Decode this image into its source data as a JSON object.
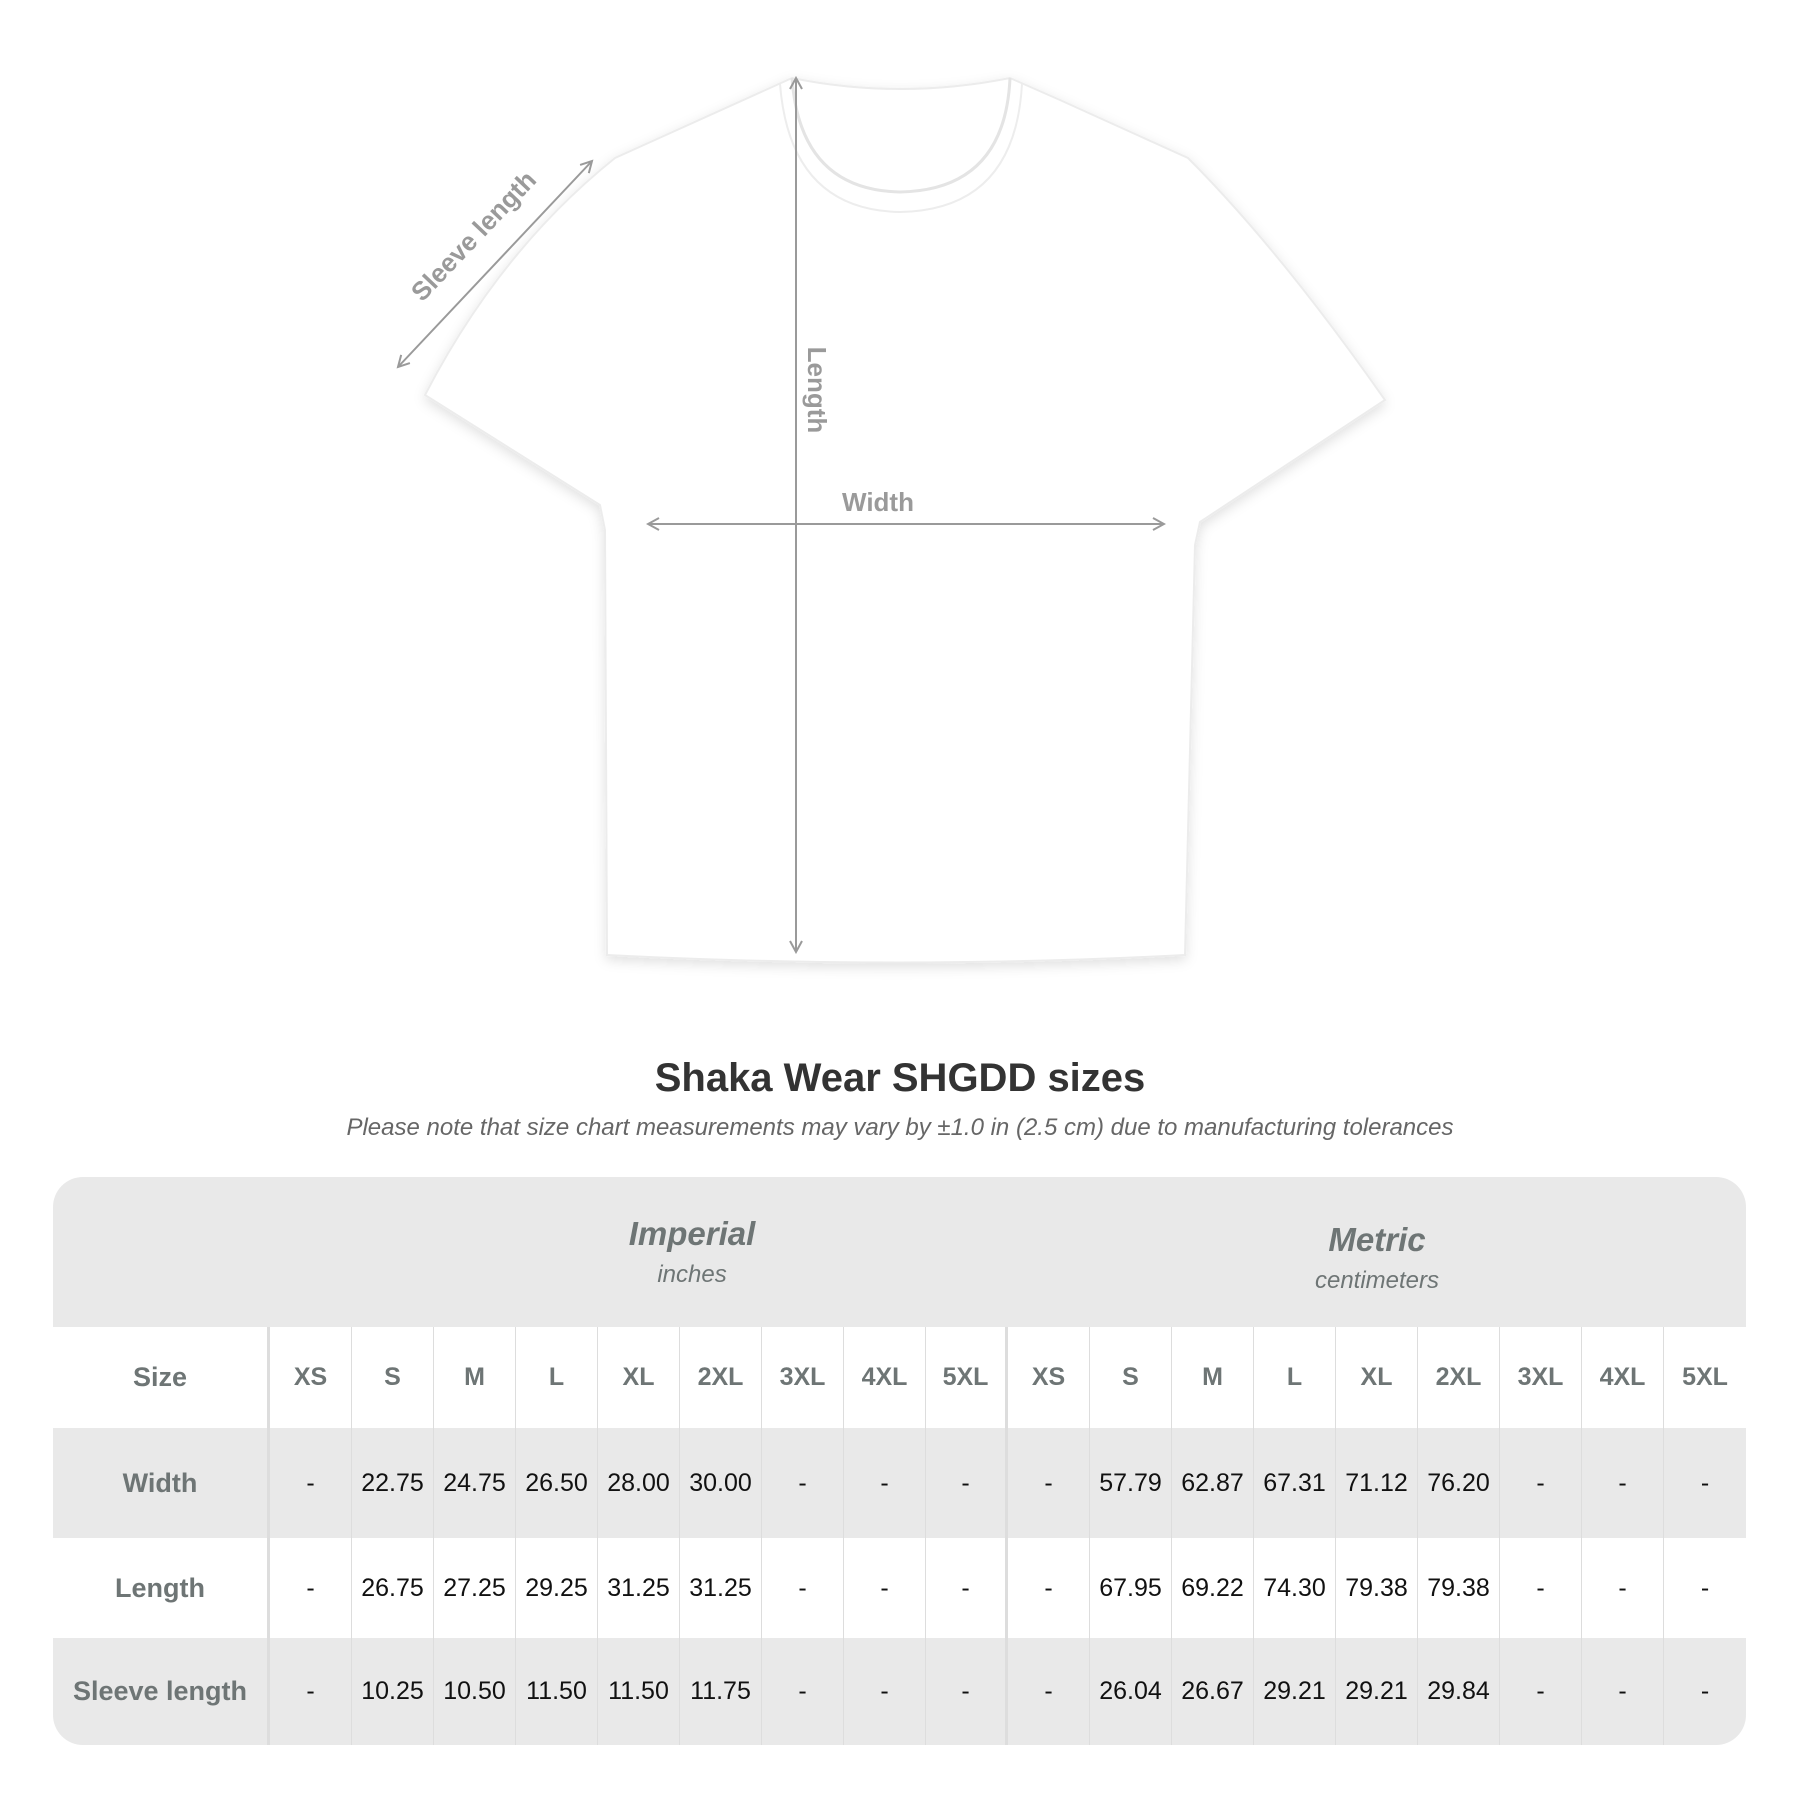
{
  "diagram": {
    "labels": {
      "sleeve": "Sleeve length",
      "length": "Length",
      "width": "Width"
    },
    "shirt_color": "#ffffff",
    "arrow_color": "#9a9a9a"
  },
  "title": "Shaka Wear SHGDD sizes",
  "subtitle": "Please note that size chart measurements may vary by ±1.0 in (2.5 cm) due to manufacturing tolerances",
  "table": {
    "imperial": {
      "name": "Imperial",
      "unit": "inches"
    },
    "metric": {
      "name": "Metric",
      "unit": "centimeters"
    },
    "size_label": "Size",
    "sizes": [
      "XS",
      "S",
      "M",
      "L",
      "XL",
      "2XL",
      "3XL",
      "4XL",
      "5XL"
    ],
    "rows": [
      {
        "label": "Width",
        "imperial": [
          "-",
          "22.75",
          "24.75",
          "26.50",
          "28.00",
          "30.00",
          "-",
          "-",
          "-"
        ],
        "metric": [
          "-",
          "57.79",
          "62.87",
          "67.31",
          "71.12",
          "76.20",
          "-",
          "-",
          "-"
        ]
      },
      {
        "label": "Length",
        "imperial": [
          "-",
          "26.75",
          "27.25",
          "29.25",
          "31.25",
          "31.25",
          "-",
          "-",
          "-"
        ],
        "metric": [
          "-",
          "67.95",
          "69.22",
          "74.30",
          "79.38",
          "79.38",
          "-",
          "-",
          "-"
        ]
      },
      {
        "label": "Sleeve length",
        "imperial": [
          "-",
          "10.25",
          "10.50",
          "11.50",
          "11.50",
          "11.75",
          "-",
          "-",
          "-"
        ],
        "metric": [
          "-",
          "26.04",
          "26.67",
          "29.21",
          "29.21",
          "29.84",
          "-",
          "-",
          "-"
        ]
      }
    ]
  }
}
